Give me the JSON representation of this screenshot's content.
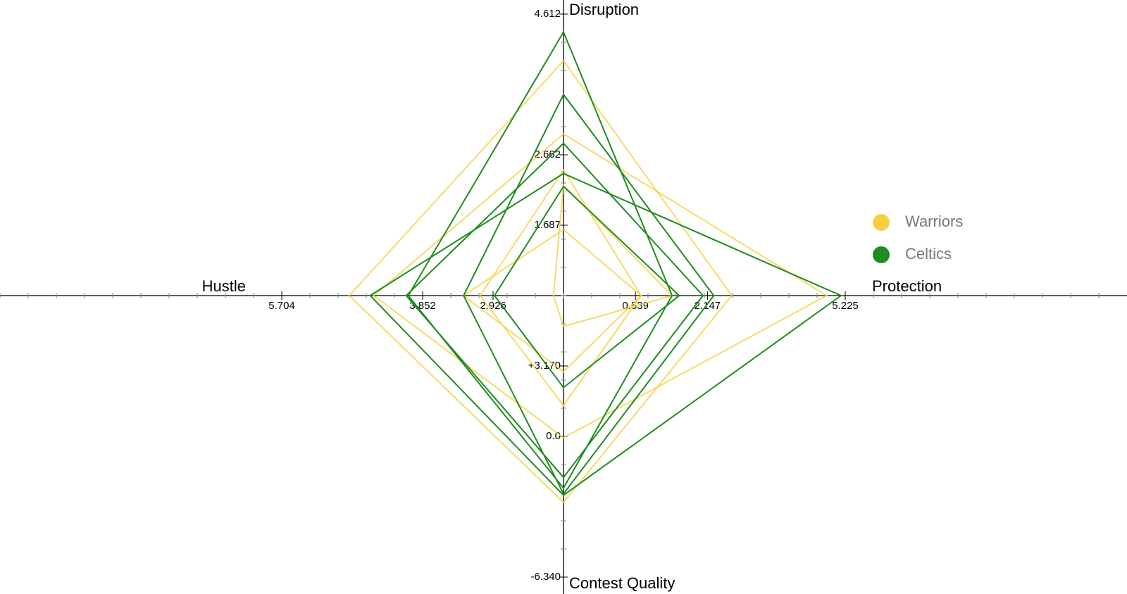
{
  "chart_data": {
    "type": "radar",
    "axes": [
      {
        "label": "Disruption",
        "lim": [
          0.712,
          4.612
        ],
        "ticks": [
          4.612,
          2.662,
          1.687
        ]
      },
      {
        "label": "Protection",
        "lim": [
          -1.069,
          5.225
        ],
        "ticks": [
          0.539,
          2.147,
          5.225
        ]
      },
      {
        "label": "Contest Quality",
        "lim": [
          6.34,
          -6.34
        ],
        "ticks": [
          {
            "value": 3.17,
            "label": "+3.170"
          },
          {
            "value": 0,
            "label": "0.0"
          },
          {
            "value": -6.34,
            "label": "-6.340"
          }
        ]
      },
      {
        "label": "Hustle",
        "lim": [
          2.0,
          5.704
        ],
        "ticks": [
          5.704,
          3.852,
          2.926
        ]
      }
    ],
    "series": [
      {
        "name": "Warriors",
        "color": "#f5d142",
        "values": [
          [
            3.965,
            2.689,
            -2.976,
            4.816
          ],
          [
            2.951,
            4.809,
            -0.065,
            4.495
          ],
          [
            2.453,
            0.665,
            1.391,
            3.096
          ],
          [
            1.627,
            0.665,
            2.911,
            3.313
          ],
          [
            2.244,
            1.356,
            4.949,
            2.132
          ]
        ]
      },
      {
        "name": "Celtics",
        "color": "#1e8c1e",
        "values": [
          [
            4.363,
            1.356,
            -2.33,
            4.041
          ],
          [
            3.498,
            2.288,
            -2.589,
            3.313
          ],
          [
            2.821,
            2.046,
            -1.845,
            4.069
          ],
          [
            2.403,
            5.13,
            -2.653,
            4.542
          ],
          [
            2.224,
            1.517,
            2.199,
            2.907
          ]
        ]
      }
    ],
    "legend": "right"
  }
}
